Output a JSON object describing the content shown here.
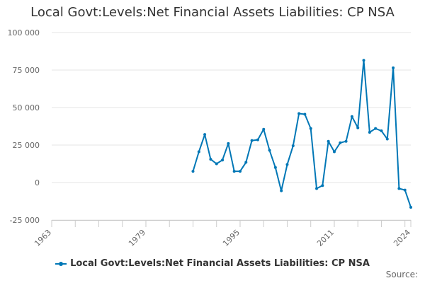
{
  "title": "Local Govt:Levels:Net Financial Assets Liabilities: CP NSA",
  "source_label": "Source:",
  "colors": {
    "series": "#0077b6",
    "grid": "#e6e6e6",
    "axis_text": "#666666"
  },
  "chart_data": {
    "type": "line",
    "title": "Local Govt:Levels:Net Financial Assets Liabilities: CP NSA",
    "xlabel": "",
    "ylabel": "",
    "xlim": [
      1963,
      2024
    ],
    "ylim": [
      -25000,
      100000
    ],
    "x_ticks": [
      1963,
      1979,
      1995,
      2011,
      2024
    ],
    "x_minor_step": 4,
    "y_ticks": [
      -25000,
      0,
      25000,
      50000,
      75000,
      100000
    ],
    "y_tick_labels": [
      "-25 000",
      "0",
      "25 000",
      "50 000",
      "75 000",
      "100 000"
    ],
    "grid": true,
    "legend_position": "bottom",
    "series": [
      {
        "name": "Local Govt:Levels:Net Financial Assets Liabilities: CP NSA",
        "x": [
          1987,
          1988,
          1989,
          1990,
          1991,
          1992,
          1993,
          1994,
          1995,
          1996,
          1997,
          1998,
          1999,
          2000,
          2001,
          2002,
          2003,
          2004,
          2005,
          2006,
          2007,
          2008,
          2009,
          2010,
          2011,
          2012,
          2013,
          2014,
          2015,
          2016,
          2017,
          2018,
          2019,
          2020,
          2021,
          2022,
          2023,
          2024
        ],
        "y": [
          7500,
          20500,
          32000,
          15500,
          12500,
          15000,
          26000,
          7500,
          7500,
          13500,
          28000,
          28500,
          35500,
          21500,
          10000,
          -5500,
          12000,
          24500,
          46000,
          45500,
          36000,
          -4000,
          -2000,
          27500,
          20500,
          26500,
          27500,
          44000,
          36500,
          81500,
          33500,
          36000,
          34500,
          29000,
          76500,
          -4000,
          -5000,
          -16500
        ]
      }
    ]
  }
}
